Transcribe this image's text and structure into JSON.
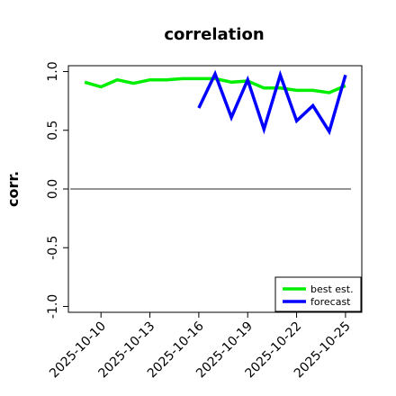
{
  "chart_data": {
    "type": "line",
    "title": "correlation",
    "ylabel": "corr.",
    "xlabel": "",
    "ylim": [
      -1.05,
      1.05
    ],
    "yticks": [
      1.0,
      0.5,
      0.0,
      -0.5,
      -1.0
    ],
    "ytick_labels": [
      "1.0",
      "0.5",
      "0.0",
      "-0.5",
      "-1.0"
    ],
    "x_days": [
      "2025-10-09",
      "2025-10-10",
      "2025-10-11",
      "2025-10-12",
      "2025-10-13",
      "2025-10-14",
      "2025-10-15",
      "2025-10-16",
      "2025-10-17",
      "2025-10-18",
      "2025-10-19",
      "2025-10-20",
      "2025-10-21",
      "2025-10-22",
      "2025-10-23",
      "2025-10-24",
      "2025-10-25"
    ],
    "xlim": [
      "2025-10-08",
      "2025-10-26"
    ],
    "xticks": [
      "2025-10-10",
      "2025-10-13",
      "2025-10-16",
      "2025-10-19",
      "2025-10-22",
      "2025-10-25"
    ],
    "xtick_labels": [
      "2025-10-10",
      "2025-10-13",
      "2025-10-16",
      "2025-10-19",
      "2025-10-22",
      "2025-10-25"
    ],
    "highlighted_tick": "2025-10-16",
    "highlight_color": "#228b22",
    "zero_line": 0.0,
    "series": [
      {
        "name": "best est.",
        "color": "#00ee00",
        "x": [
          "2025-10-09",
          "2025-10-10",
          "2025-10-11",
          "2025-10-12",
          "2025-10-13",
          "2025-10-14",
          "2025-10-15",
          "2025-10-16",
          "2025-10-17",
          "2025-10-18",
          "2025-10-19",
          "2025-10-20",
          "2025-10-21",
          "2025-10-22",
          "2025-10-23",
          "2025-10-24",
          "2025-10-25"
        ],
        "values": [
          0.91,
          0.87,
          0.93,
          0.9,
          0.93,
          0.93,
          0.94,
          0.94,
          0.94,
          0.91,
          0.92,
          0.86,
          0.86,
          0.84,
          0.84,
          0.82,
          0.88
        ]
      },
      {
        "name": "forecast",
        "color": "#0000ff",
        "x": [
          "2025-10-16",
          "2025-10-17",
          "2025-10-18",
          "2025-10-19",
          "2025-10-20",
          "2025-10-21",
          "2025-10-22",
          "2025-10-23",
          "2025-10-24",
          "2025-10-25"
        ],
        "values": [
          0.69,
          0.98,
          0.61,
          0.93,
          0.51,
          0.97,
          0.58,
          0.71,
          0.49,
          0.97
        ]
      }
    ],
    "legend": "lower-right"
  }
}
